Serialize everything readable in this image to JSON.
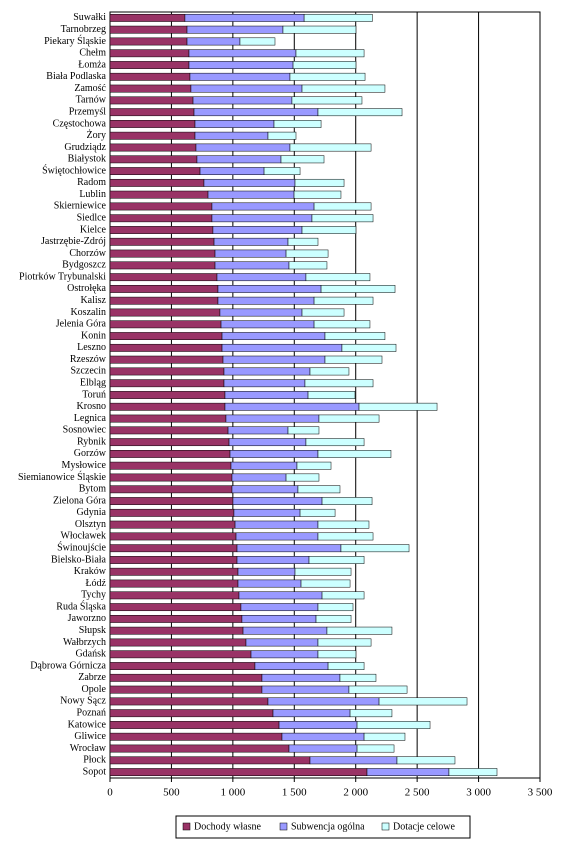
{
  "chart_data": {
    "type": "stacked-barh",
    "legend": "bottom",
    "grid": true,
    "categories": [
      "Suwałki",
      "Tarnobrzeg",
      "Piekary Śląskie",
      "Chełm",
      "Łomża",
      "Biała Podlaska",
      "Zamość",
      "Tarnów",
      "Przemyśl",
      "Częstochowa",
      "Żory",
      "Grudziądz",
      "Białystok",
      "Świętochłowice",
      "Radom",
      "Lublin",
      "Skierniewice",
      "Siedlce",
      "Kielce",
      "Jastrzębie-Zdrój",
      "Chorzów",
      "Bydgoszcz",
      "Piotrków Trybunalski",
      "Ostrołęka",
      "Kalisz",
      "Koszalin",
      "Jelenia Góra",
      "Konin",
      "Leszno",
      "Rzeszów",
      "Szczecin",
      "Elbląg",
      "Toruń",
      "Krosno",
      "Legnica",
      "Sosnowiec",
      "Rybnik",
      "Gorzów",
      "Mysłowice",
      "Siemianowice Śląskie",
      "Bytom",
      "Zielona Góra",
      "Gdynia",
      "Olsztyn",
      "Włocławek",
      "Świnoujście",
      "Bielsko-Biała",
      "Kraków",
      "Łódź",
      "Tychy",
      "Ruda Śląska",
      "Jaworzno",
      "Słupsk",
      "Wałbrzych",
      "Gdańsk",
      "Dąbrowa Górnicza",
      "Zabrze",
      "Opole",
      "Nowy Sącz",
      "Poznań",
      "Katowice",
      "Gliwice",
      "Wrocław",
      "Płock",
      "Sopot"
    ],
    "series": [
      {
        "name": "Dochody własne",
        "color": "#993366",
        "values": [
          610,
          627,
          627,
          643,
          643,
          651,
          659,
          676,
          684,
          692,
          692,
          700,
          708,
          733,
          765,
          798,
          830,
          830,
          838,
          847,
          855,
          855,
          871,
          879,
          879,
          895,
          904,
          912,
          912,
          920,
          928,
          928,
          936,
          936,
          944,
          961,
          969,
          977,
          985,
          993,
          993,
          1001,
          1009,
          1018,
          1026,
          1034,
          1034,
          1042,
          1042,
          1050,
          1066,
          1074,
          1083,
          1107,
          1148,
          1180,
          1237,
          1237,
          1286,
          1327,
          1376,
          1400,
          1457,
          1628,
          2092
        ]
      },
      {
        "name": "Subwencja ogólna",
        "color": "#9999ff",
        "values": [
          970,
          781,
          431,
          871,
          847,
          814,
          904,
          805,
          1009,
          643,
          594,
          765,
          684,
          521,
          741,
          700,
          831,
          814,
          725,
          602,
          578,
          602,
          724,
          839,
          782,
          668,
          757,
          838,
          976,
          830,
          700,
          659,
          676,
          1091,
          757,
          488,
          626,
          716,
          537,
          440,
          537,
          725,
          538,
          675,
          667,
          846,
          586,
          464,
          513,
          676,
          627,
          603,
          683,
          586,
          545,
          595,
          635,
          708,
          904,
          627,
          635,
          668,
          554,
          708,
          667
        ]
      },
      {
        "name": "Dotacje celowe",
        "color": "#ccffff",
        "values": [
          555,
          594,
          285,
          554,
          512,
          611,
          675,
          570,
          684,
          383,
          228,
          660,
          350,
          293,
          399,
          382,
          464,
          497,
          439,
          244,
          342,
          309,
          521,
          602,
          480,
          342,
          455,
          488,
          440,
          464,
          317,
          554,
          382,
          635,
          489,
          252,
          473,
          594,
          277,
          268,
          342,
          407,
          285,
          415,
          448,
          554,
          448,
          456,
          399,
          342,
          285,
          285,
          529,
          432,
          309,
          293,
          293,
          473,
          716,
          341,
          594,
          333,
          301,
          472,
          391
        ]
      }
    ],
    "xlim": [
      0,
      3500
    ],
    "xticks": [
      0,
      500,
      {
        "value": 1000,
        "label": "1 000"
      },
      {
        "value": 1500,
        "label": "1 500"
      },
      {
        "value": 2000,
        "label": "2 000"
      },
      {
        "value": 2500,
        "label": "2 500"
      },
      {
        "value": 3000,
        "label": "3 000"
      },
      {
        "value": 3500,
        "label": "3 500"
      }
    ]
  }
}
